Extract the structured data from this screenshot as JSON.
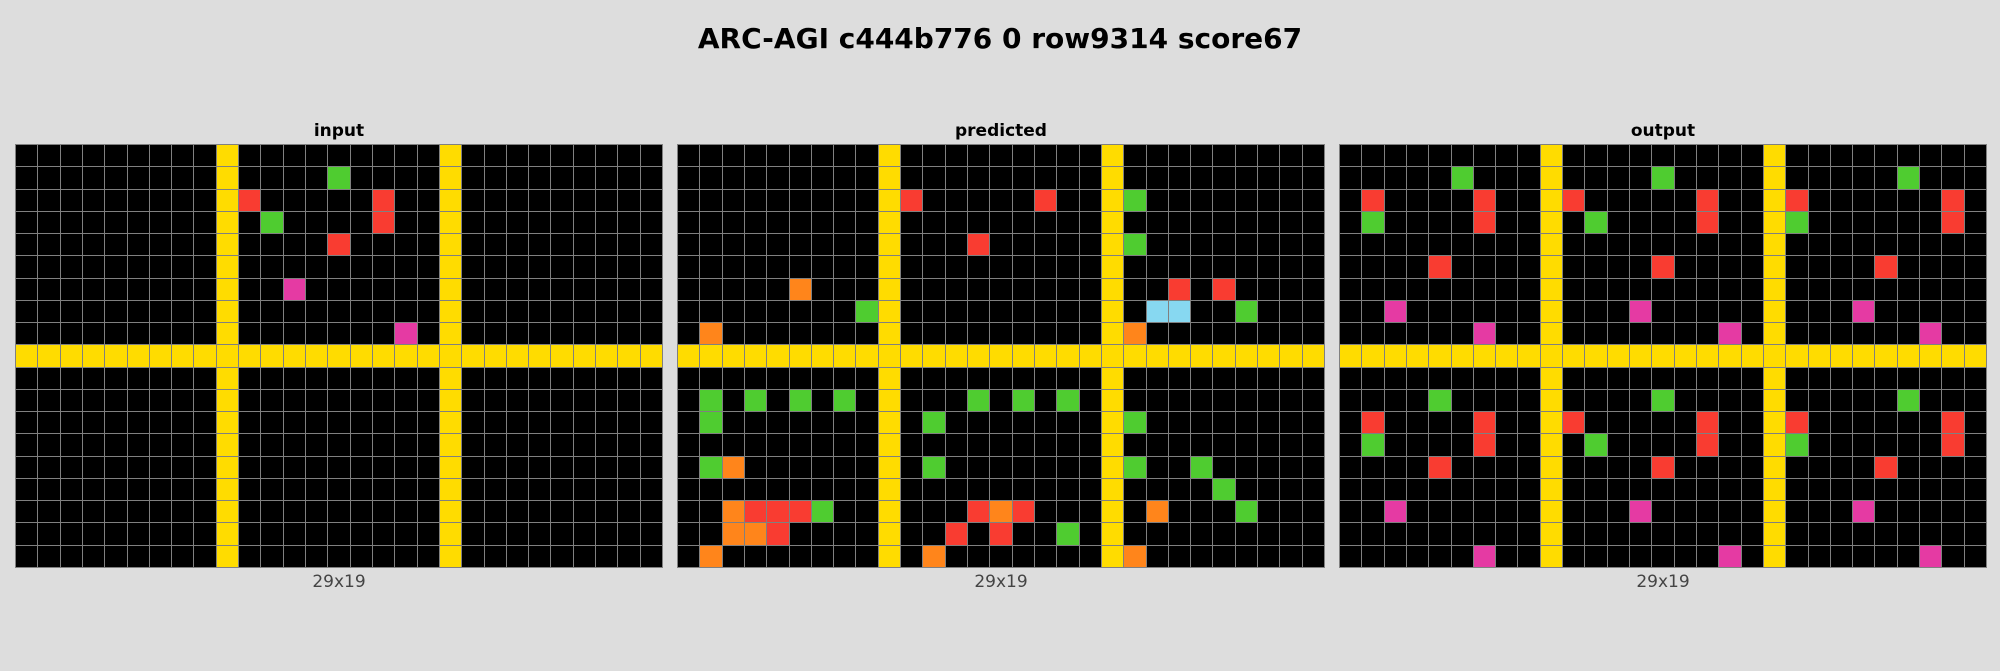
{
  "title": "ARC-AGI c444b776 0 row9314 score67",
  "palette": {
    "0": "#000000",
    "1": "#1e93ff",
    "2": "#f93c31",
    "3": "#4fcc30",
    "4": "#ffdc00",
    "5": "#999999",
    "6": "#e53aa3",
    "7": "#ff851b",
    "8": "#87d8f1",
    "9": "#921231"
  },
  "panels": [
    {
      "label": "input",
      "dims": "29x19",
      "grid": [
        "00000000040000000004000000000",
        "00000000040000300004000000000",
        "00000000042000002004000000000",
        "00000000040300002004000000000",
        "00000000040000200004000000000",
        "00000000040000000004000000000",
        "00000000040060000004000000000",
        "00000000040000000004000000000",
        "00000000040000000604000000000",
        "44444444444444444444444444444",
        "00000000040000000004000000000",
        "00000000040000000004000000000",
        "00000000040000000004000000000",
        "00000000040000000004000000000",
        "00000000040000000004000000000",
        "00000000040000000004000000000",
        "00000000040000000004000000000",
        "00000000040000000004000000000",
        "00000000040000000004000000000"
      ]
    },
    {
      "label": "predicted",
      "dims": "29x19",
      "grid": [
        "00000000040000000004000000000",
        "00000000040000000004000000000",
        "00000000042000002004300000000",
        "00000000040000000004000000000",
        "00000000040002000004300000000",
        "00000000040000000004000000000",
        "00000700040000000004002020000",
        "00000000340000000004088003000",
        "07000000040000000004700000000",
        "44444444444444444444444444444",
        "00000000040000000004000000000",
        "03030303040003030304000000000",
        "03000000040300000004300000000",
        "00000000040000000004000000000",
        "03700000040300000004300300000",
        "00000000040000000004000030000",
        "00722230040002720004070003000",
        "00772000040020200304000000000",
        "07000000040700000004700000000"
      ]
    },
    {
      "label": "output",
      "dims": "29x19",
      "grid": [
        "00000000040000000004000000000",
        "00000300040000300004000003000",
        "02000020042000002004200000020",
        "03000020040300002004300000020",
        "00000000040000000004000000000",
        "00002000040000200004000020000",
        "00000000040000000004000000000",
        "00600000040006000004000600000",
        "00000060040000000604000000600",
        "44444444444444444444444444444",
        "00000000040000000004000000000",
        "00003000040000300004000003000",
        "02000020042000002004200000020",
        "03000020040300002004300000020",
        "00002000040000200004000020000",
        "00000000040000000004000000000",
        "00600000040006000004000600000",
        "00000000040000000004000000000",
        "00000060040000000604000000600"
      ]
    }
  ]
}
